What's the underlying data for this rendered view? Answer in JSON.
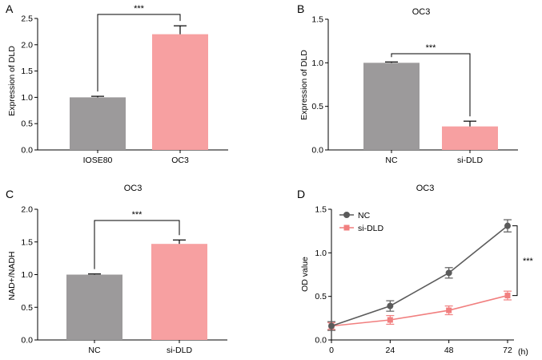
{
  "figure": {
    "panel_letters": [
      "A",
      "B",
      "C",
      "D"
    ]
  },
  "chart_data": [
    {
      "panel": "A",
      "type": "bar",
      "title": "",
      "xlabel": "",
      "ylabel": "Expression of DLD",
      "categories": [
        "IOSE80",
        "OC3"
      ],
      "values": [
        1.0,
        2.2
      ],
      "errors": [
        0.02,
        0.16
      ],
      "colors": [
        "#9c9a9b",
        "#f7a0a1"
      ],
      "ylim": [
        0,
        2.5
      ],
      "yticks": [
        "0.0",
        "0.5",
        "1.0",
        "1.5",
        "2.0",
        "2.5"
      ],
      "yticks_values": [
        0,
        0.5,
        1.0,
        1.5,
        2.0,
        2.5
      ],
      "significance": "***"
    },
    {
      "panel": "B",
      "type": "bar",
      "title": "OC3",
      "xlabel": "",
      "ylabel": "Expression of DLD",
      "categories": [
        "NC",
        "si-DLD"
      ],
      "values": [
        1.0,
        0.27
      ],
      "errors": [
        0.01,
        0.06
      ],
      "colors": [
        "#9c9a9b",
        "#f7a0a1"
      ],
      "ylim": [
        0,
        1.5
      ],
      "yticks": [
        "0.0",
        "0.5",
        "1.0",
        "1.5"
      ],
      "yticks_values": [
        0,
        0.5,
        1.0,
        1.5
      ],
      "significance": "***"
    },
    {
      "panel": "C",
      "type": "bar",
      "title": "OC3",
      "xlabel": "",
      "ylabel": "NAD+/NADH",
      "categories": [
        "NC",
        "si-DLD"
      ],
      "values": [
        1.0,
        1.47
      ],
      "errors": [
        0.01,
        0.06
      ],
      "colors": [
        "#9c9a9b",
        "#f7a0a1"
      ],
      "ylim": [
        0,
        2.0
      ],
      "yticks": [
        "0.0",
        "0.5",
        "1.0",
        "1.5",
        "2.0"
      ],
      "yticks_values": [
        0,
        0.5,
        1.0,
        1.5,
        2.0
      ],
      "significance": "***"
    },
    {
      "panel": "D",
      "type": "line",
      "title": "OC3",
      "xlabel": "(h)",
      "ylabel": "OD value",
      "x": [
        0,
        24,
        48,
        72
      ],
      "xticks": [
        "0",
        "24",
        "48",
        "72"
      ],
      "xlim": [
        0,
        72
      ],
      "ylim": [
        0,
        1.5
      ],
      "yticks": [
        "0.0",
        "0.5",
        "1.0",
        "1.5"
      ],
      "yticks_values": [
        0,
        0.5,
        1.0,
        1.5
      ],
      "series": [
        {
          "name": "NC",
          "values": [
            0.16,
            0.39,
            0.77,
            1.31
          ],
          "errors": [
            0.05,
            0.06,
            0.06,
            0.07
          ],
          "color": "#5b5b5b",
          "marker": "circle"
        },
        {
          "name": "si-DLD",
          "values": [
            0.16,
            0.23,
            0.34,
            0.51
          ],
          "errors": [
            0.04,
            0.05,
            0.05,
            0.05
          ],
          "color": "#f17f7f",
          "marker": "square"
        }
      ],
      "legend_position": "top-left",
      "significance": "***"
    }
  ]
}
